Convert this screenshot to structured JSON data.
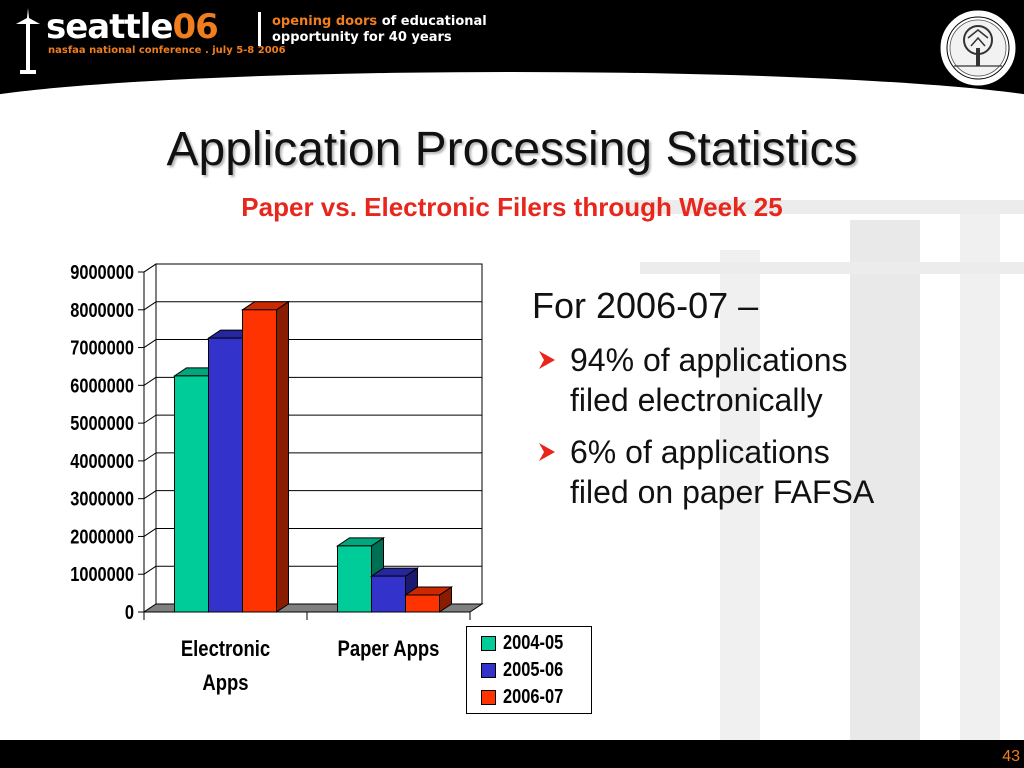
{
  "header": {
    "brand_name": "seattle",
    "brand_year": "06",
    "brand_subtitle": "nasfaa national conference . july 5-8 2006",
    "tagline_1a": "opening doors",
    "tagline_1b": " of educational",
    "tagline_2": "opportunity for 40 years"
  },
  "slide": {
    "title": "Application Processing Statistics",
    "subtitle": "Paper vs. Electronic Filers through Week 25",
    "heading": "For 2006-07 –",
    "bullets": [
      {
        "line1": "94% of applications",
        "line2": "filed electronically"
      },
      {
        "line1": "6% of applications",
        "line2": "filed on paper FAFSA"
      }
    ],
    "page_number": "43"
  },
  "colors": {
    "accent_orange": "#f07d1e",
    "subtitle_red": "#e8261c",
    "series_2004": "#00cc99",
    "series_2005": "#3333cc",
    "series_2006": "#ff3300"
  },
  "chart_data": {
    "type": "bar",
    "categories": [
      "Electronic Apps",
      "Paper Apps"
    ],
    "series": [
      {
        "name": "2004-05",
        "values": [
          6250000,
          1750000
        ]
      },
      {
        "name": "2005-06",
        "values": [
          7250000,
          950000
        ]
      },
      {
        "name": "2006-07",
        "values": [
          8000000,
          450000
        ]
      }
    ],
    "ylim": [
      0,
      9000000
    ],
    "yticks": [
      "0",
      "1000000",
      "2000000",
      "3000000",
      "4000000",
      "5000000",
      "6000000",
      "7000000",
      "8000000",
      "9000000"
    ],
    "category_labels": [
      [
        "Electronic",
        "Apps"
      ],
      [
        "Paper Apps"
      ]
    ],
    "grid": true,
    "legend": "bottom-right",
    "style": "3d"
  }
}
